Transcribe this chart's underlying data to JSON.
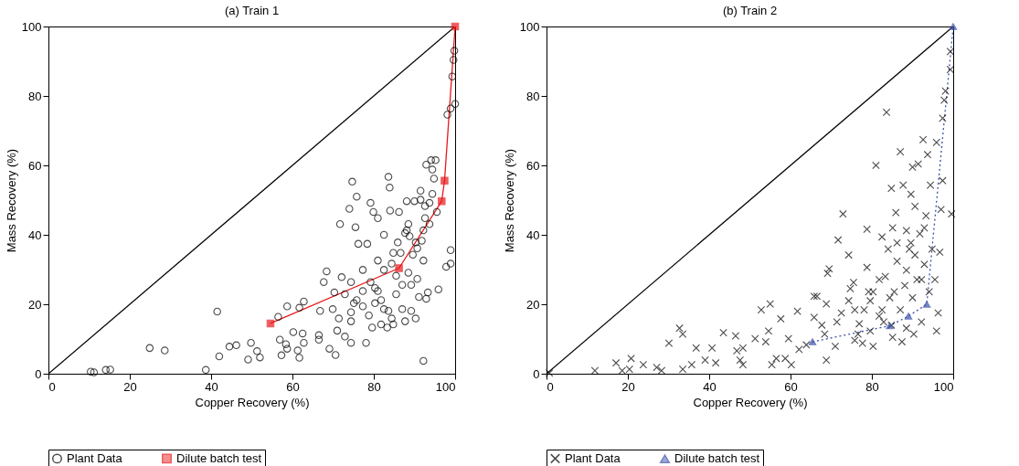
{
  "chart_data": [
    {
      "type": "scatter",
      "title": "(a) Train 1",
      "xlabel": "Copper Recovery (%)",
      "ylabel": "Mass Recovery (%)",
      "xlim": [
        0,
        100
      ],
      "ylim": [
        0,
        100
      ],
      "xticks": [
        0,
        20,
        40,
        60,
        80,
        100
      ],
      "yticks": [
        0,
        20,
        40,
        60,
        80,
        100
      ],
      "grid": false,
      "legend": "bottom",
      "series": [
        {
          "type": "line",
          "color": "#000000",
          "marker": "none",
          "line_style": "solid",
          "x": [
            0,
            100
          ],
          "values": [
            0,
            100
          ]
        },
        {
          "name": "Plant Data",
          "type": "scatter",
          "color": "#000000",
          "marker": "circle",
          "x": [
            10.4,
            11.2,
            14.1,
            15.2,
            38.7,
            24.9,
            28.6,
            41.5,
            42.0,
            44.5,
            46.2,
            49.1,
            49.8,
            51.3,
            52.0,
            56.5,
            56.9,
            58.4,
            58.7,
            57.3,
            58.7,
            60.2,
            61.3,
            61.7,
            62.5,
            62.8,
            62.8,
            61.7,
            66.5,
            66.5,
            66.8,
            67.7,
            68.4,
            69.1,
            69.9,
            70.6,
            70.3,
            72.1,
            71.0,
            71.4,
            72.9,
            74.4,
            74.4,
            74.7,
            75.8,
            75.5,
            74.0,
            71.7,
            76.2,
            78.4,
            79.2,
            79.9,
            81.0,
            81.8,
            78.1,
            77.3,
            79.2,
            80.3,
            80.3,
            81.8,
            82.5,
            83.6,
            83.9,
            84.0,
            83.6,
            84.4,
            84.8,
            85.9,
            86.2,
            86.6,
            85.5,
            87.0,
            87.7,
            88.5,
            88.1,
            88.8,
            89.2,
            90.0,
            90.3,
            90.7,
            91.5,
            91.5,
            91.8,
            92.2,
            92.6,
            92.6,
            92.9,
            93.3,
            92.9,
            93.7,
            94.1,
            94.4,
            94.8,
            95.2,
            95.5,
            95.9,
            92.2,
            98.9,
            97.8,
            98.9,
            98.1,
            98.9,
            100.0,
            99.3,
            99.6,
            99.8,
            74.4,
            77.3,
            78.8,
            75.8,
            81.0,
            82.5,
            83.3,
            84.8,
            79.6,
            74.4,
            75.1,
            85.5,
            87.0,
            88.5,
            89.6,
            90.7,
            87.7,
            84.4,
            82.5,
            81.0,
            77.3,
            72.9,
            89.2,
            90.3,
            91.1,
            92.2,
            93.7,
            94.4,
            88.1
          ],
          "values": [
            0.6,
            0.4,
            1.1,
            1.2,
            1.1,
            7.4,
            6.7,
            17.9,
            5.0,
            7.8,
            8.2,
            4.1,
            8.9,
            6.5,
            4.7,
            16.4,
            9.8,
            8.5,
            7.2,
            5.3,
            19.4,
            12.0,
            6.7,
            4.6,
            11.6,
            8.9,
            20.8,
            19.0,
            11.1,
            9.8,
            18.1,
            26.4,
            29.5,
            7.2,
            18.6,
            5.4,
            23.4,
            27.8,
            12.4,
            15.9,
            10.7,
            8.9,
            26.4,
            55.3,
            51.0,
            42.2,
            47.5,
            43.1,
            37.4,
            37.4,
            49.2,
            46.6,
            44.8,
            14.2,
            8.9,
            29.9,
            26.4,
            24.7,
            20.3,
            21.2,
            40.0,
            56.7,
            53.6,
            47.0,
            18.1,
            15.9,
            34.8,
            37.8,
            46.6,
            34.8,
            22.9,
            18.6,
            15.1,
            43.1,
            49.7,
            39.6,
            25.6,
            49.7,
            37.8,
            27.3,
            52.7,
            50.1,
            38.3,
            32.6,
            44.8,
            48.3,
            60.2,
            23.4,
            21.6,
            43.1,
            61.5,
            58.8,
            56.2,
            61.5,
            46.6,
            24.3,
            3.7,
            35.6,
            30.8,
            31.7,
            74.6,
            76.4,
            77.7,
            85.6,
            90.4,
            93.0,
            15.1,
            19.4,
            16.8,
            21.2,
            23.8,
            18.6,
            13.3,
            14.2,
            13.3,
            17.7,
            20.3,
            28.2,
            25.6,
            29.1,
            34.3,
            36.1,
            40.5,
            31.7,
            29.9,
            32.6,
            23.8,
            22.9,
            18.1,
            15.9,
            22.1,
            41.3,
            49.2,
            51.8,
            41.3
          ]
        },
        {
          "name": "Dilute batch test",
          "type": "line",
          "color": "#e8191c",
          "marker": "square",
          "line_style": "solid",
          "x": [
            54.6,
            86.2,
            96.7,
            97.4,
            100
          ],
          "values": [
            14.5,
            30.4,
            49.7,
            55.6,
            100
          ]
        }
      ]
    },
    {
      "type": "scatter",
      "title": "(b) Train 2",
      "xlabel": "Copper Recovery (%)",
      "ylabel": "Mass Recovery (%)",
      "xlim": [
        0,
        100
      ],
      "ylim": [
        0,
        100
      ],
      "xticks": [
        0,
        20,
        40,
        60,
        80,
        100
      ],
      "yticks": [
        0,
        20,
        40,
        60,
        80,
        100
      ],
      "grid": false,
      "legend": "bottom",
      "series": [
        {
          "type": "line",
          "color": "#000000",
          "marker": "none",
          "line_style": "solid",
          "x": [
            0,
            100
          ],
          "values": [
            0,
            100
          ]
        },
        {
          "name": "Plant Data",
          "type": "scatter",
          "color": "#000000",
          "marker": "cross",
          "x": [
            0.7,
            11.9,
            17.1,
            18.6,
            20.8,
            20.4,
            23.8,
            27.1,
            28.3,
            30.1,
            32.7,
            33.5,
            33.5,
            35.7,
            36.8,
            39.0,
            40.7,
            41.6,
            43.5,
            46.5,
            46.8,
            47.6,
            48.3,
            48.3,
            51.3,
            52.8,
            53.9,
            54.6,
            55.0,
            55.4,
            56.5,
            57.6,
            58.7,
            59.5,
            60.2,
            61.7,
            62.1,
            63.9,
            65.8,
            66.5,
            65.8,
            67.7,
            68.4,
            68.8,
            68.8,
            69.1,
            69.5,
            71.0,
            71.7,
            72.5,
            72.9,
            74.3,
            74.7,
            75.5,
            75.8,
            75.8,
            76.9,
            77.7,
            78.8,
            78.8,
            79.2,
            79.6,
            80.3,
            81.0,
            81.8,
            82.5,
            82.5,
            83.6,
            84.0,
            84.4,
            84.8,
            85.1,
            85.1,
            85.9,
            86.2,
            87.0,
            87.4,
            87.7,
            88.1,
            88.5,
            89.2,
            89.6,
            90.0,
            90.3,
            90.6,
            91.1,
            91.4,
            91.8,
            92.2,
            92.6,
            92.9,
            93.3,
            93.7,
            94.1,
            94.4,
            94.8,
            95.5,
            95.9,
            95.9,
            96.3,
            96.7,
            97.0,
            97.4,
            97.4,
            97.8,
            98.1,
            99.3,
            99.3,
            99.6,
            71.4,
            74.3,
            76.6,
            78.1,
            80.3,
            81.8,
            83.3,
            85.5,
            87.0,
            88.5,
            90.0,
            90.6,
            92.2,
            86.2,
            89.6,
            92.9,
            79.6,
            82.9,
            84.8,
            88.5
          ],
          "values": [
            0.2,
            0.9,
            3.1,
            0.9,
            4.4,
            1.3,
            2.6,
            1.8,
            0.9,
            8.8,
            13.1,
            11.4,
            1.3,
            2.6,
            7.4,
            3.9,
            7.4,
            3.1,
            11.8,
            10.9,
            6.6,
            3.9,
            7.4,
            2.6,
            10.1,
            18.4,
            9.2,
            12.3,
            20.1,
            2.6,
            4.4,
            15.8,
            4.4,
            10.1,
            2.6,
            18.0,
            7.0,
            8.3,
            22.3,
            22.3,
            16.2,
            14.0,
            11.4,
            3.9,
            20.1,
            28.9,
            30.2,
            7.9,
            38.5,
            17.5,
            46.0,
            34.2,
            24.5,
            26.3,
            18.4,
            9.6,
            14.4,
            8.8,
            41.6,
            30.6,
            23.6,
            12.3,
            7.9,
            60.0,
            27.1,
            39.4,
            18.4,
            75.3,
            35.9,
            21.9,
            53.4,
            42.0,
            10.5,
            46.4,
            32.4,
            63.9,
            9.2,
            54.3,
            25.4,
            41.2,
            35.9,
            51.7,
            59.5,
            11.4,
            48.2,
            27.1,
            60.4,
            40.3,
            14.9,
            67.4,
            31.5,
            45.5,
            63.1,
            23.6,
            54.3,
            35.9,
            27.1,
            66.6,
            12.3,
            17.5,
            35.0,
            47.3,
            55.6,
            73.6,
            78.8,
            81.4,
            87.6,
            92.8,
            46.0,
            14.9,
            21.0,
            11.4,
            18.4,
            23.6,
            16.6,
            28.0,
            23.6,
            18.4,
            29.8,
            21.9,
            34.2,
            27.1,
            37.7,
            37.7,
            42.0,
            21.0,
            14.9,
            14.0,
            13.1
          ]
        },
        {
          "name": "Dilute batch test",
          "type": "line",
          "color": "#3a4fa8",
          "marker": "triangle",
          "line_style": "dotted",
          "x": [
            65.4,
            84.4,
            89.0,
            93.5,
            100
          ],
          "values": [
            9.2,
            13.8,
            16.6,
            20.0,
            100
          ]
        }
      ]
    }
  ]
}
